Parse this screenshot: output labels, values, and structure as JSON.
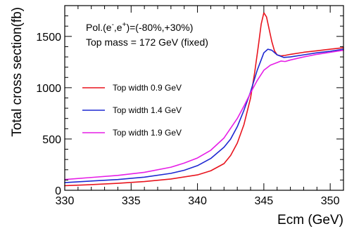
{
  "chart_data": {
    "type": "line",
    "xlabel": "Ecm (GeV)",
    "ylabel": "Total cross section(fb)",
    "xlim": [
      330,
      351
    ],
    "ylim": [
      0,
      1800
    ],
    "xticks": [
      330,
      335,
      340,
      345,
      350
    ],
    "yticks": [
      0,
      500,
      1000,
      1500
    ],
    "grid": false,
    "legend_placement": "left",
    "annotations": {
      "pol_prefix": "Pol.(e",
      "pol_sup1": "-",
      "pol_mid": ",e",
      "pol_sup2": "+",
      "pol_suffix": ")=(-80%,+30%)",
      "mass": "Top mass = 172 GeV (fixed)"
    },
    "series": [
      {
        "name": "Top width 0.9 GeV",
        "color": "#e8141e",
        "x": [
          330,
          332,
          334,
          336,
          338,
          340,
          341,
          342,
          342.5,
          343,
          343.5,
          344,
          344.3,
          344.6,
          344.8,
          345,
          345.2,
          345.4,
          345.6,
          345.8,
          346,
          346.3,
          346.6,
          347,
          348,
          349,
          350,
          351
        ],
        "y": [
          45,
          55,
          68,
          85,
          110,
          150,
          190,
          260,
          340,
          460,
          640,
          900,
          1140,
          1420,
          1620,
          1730,
          1690,
          1570,
          1450,
          1360,
          1320,
          1310,
          1315,
          1325,
          1345,
          1360,
          1375,
          1390
        ]
      },
      {
        "name": "Top width 1.4 GeV",
        "color": "#1e28d2",
        "x": [
          330,
          332,
          334,
          336,
          338,
          339,
          340,
          341,
          342,
          342.5,
          343,
          343.5,
          344,
          344.5,
          345,
          345.3,
          345.6,
          346,
          346.5,
          347,
          348,
          349,
          350,
          351
        ],
        "y": [
          75,
          90,
          105,
          128,
          165,
          195,
          240,
          310,
          420,
          500,
          620,
          780,
          960,
          1170,
          1340,
          1375,
          1365,
          1320,
          1295,
          1300,
          1320,
          1340,
          1355,
          1375
        ]
      },
      {
        "name": "Top width 1.9 GeV",
        "color": "#e61ee6",
        "x": [
          330,
          332,
          334,
          336,
          338,
          339,
          340,
          341,
          342,
          343,
          343.5,
          344,
          344.5,
          345,
          345.5,
          346,
          346.3,
          346.6,
          347,
          348,
          349,
          350,
          351
        ],
        "y": [
          105,
          125,
          145,
          175,
          225,
          265,
          315,
          390,
          510,
          700,
          820,
          950,
          1070,
          1170,
          1220,
          1245,
          1260,
          1255,
          1270,
          1300,
          1325,
          1345,
          1365
        ]
      }
    ]
  }
}
